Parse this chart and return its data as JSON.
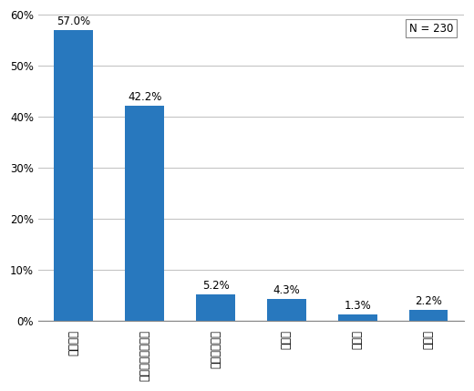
{
  "categories": [
    "証券会社",
    "銀行等の金融機関",
    "投資信託会社",
    "郵便局",
    "その他",
    "無回答"
  ],
  "values": [
    57.0,
    42.2,
    5.2,
    4.3,
    1.3,
    2.2
  ],
  "bar_color": "#2878be",
  "ylim": [
    0,
    60
  ],
  "yticks": [
    0,
    10,
    20,
    30,
    40,
    50,
    60
  ],
  "ytick_labels": [
    "0%",
    "10%",
    "20%",
    "30%",
    "40%",
    "50%",
    "60%"
  ],
  "annotation": "N = 230",
  "background_color": "#ffffff",
  "label_fontsize": 8.5,
  "tick_fontsize": 8.5,
  "value_fontsize": 8.5
}
